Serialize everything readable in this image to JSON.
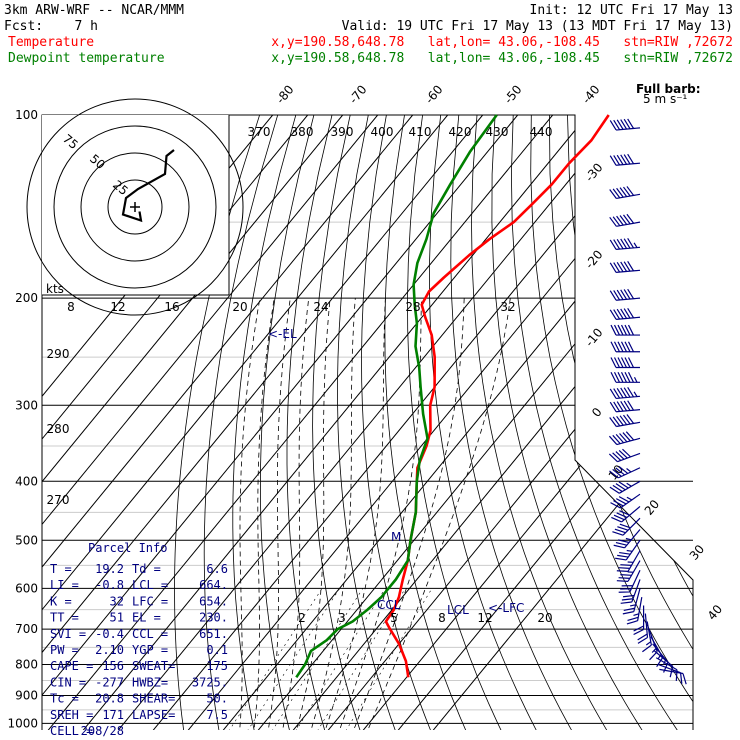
{
  "header": {
    "model": "3km ARW-WRF -- NCAR/MMM",
    "init": "Init: 12 UTC Fri 17 May 13",
    "fcst": "Fcst:    7 h",
    "valid": "Valid: 19 UTC Fri 17 May 13 (13 MDT Fri 17 May 13)",
    "temp_label": "Temperature",
    "dew_label": "Dewpoint temperature",
    "loc_line": "x,y=190.58,648.78   lat,lon= 43.06,-108.45   stn=RIW ,72672"
  },
  "colors": {
    "temperature": "#ff0000",
    "dewpoint": "#008000",
    "parcel": "#000080",
    "grid": "#000000"
  },
  "barb_legend": {
    "title": "Full barb:",
    "unit": "5 m s⁻¹"
  },
  "hodograph": {
    "ring_labels": [
      "75",
      "50",
      "25"
    ],
    "kts_label": "kts",
    "hodo_pts": [
      [
        3,
        -3
      ],
      [
        4,
        -9
      ],
      [
        -8,
        -5
      ],
      [
        -6,
        6
      ],
      [
        2,
        12
      ],
      [
        20,
        22
      ],
      [
        21,
        34
      ],
      [
        26,
        38
      ]
    ]
  },
  "chart_data": {
    "type": "line",
    "title": "",
    "xlabel": "",
    "ylabel": "",
    "y_axis_pressure_labels": [
      "100",
      "200",
      "300",
      "400",
      "500",
      "600",
      "700",
      "800",
      "900",
      "1000"
    ],
    "x_axis_temp_labels": [
      "-80",
      "-70",
      "-60",
      "-50",
      "-40",
      "-30",
      "-20",
      "-10",
      "0",
      "10",
      "20",
      "30",
      "40"
    ],
    "mixing_ratio_labels": [
      "2",
      "3",
      "5",
      "8",
      "12",
      "20"
    ],
    "theta_labels_top": [
      "370",
      "380",
      "390",
      "400",
      "410",
      "420",
      "430",
      "440"
    ],
    "theta_labels_left": [
      "290",
      "280",
      "270"
    ],
    "theta_e_labels": [
      "8",
      "12",
      "16",
      "20",
      "24",
      "28",
      "32"
    ],
    "series": [
      {
        "name": "Temperature",
        "points": [
          [
            840,
            30.5
          ],
          [
            790,
            26
          ],
          [
            740,
            20
          ],
          [
            700,
            14
          ],
          [
            680,
            11
          ],
          [
            650,
            10.5
          ],
          [
            620,
            9
          ],
          [
            580,
            6
          ],
          [
            540,
            3
          ],
          [
            500,
            -1
          ],
          [
            450,
            -6
          ],
          [
            400,
            -13
          ],
          [
            380,
            -16
          ],
          [
            350,
            -18.5
          ],
          [
            330,
            -21
          ],
          [
            300,
            -27
          ],
          [
            280,
            -30
          ],
          [
            250,
            -37
          ],
          [
            230,
            -43
          ],
          [
            215,
            -49
          ],
          [
            205,
            -53
          ],
          [
            195,
            -54
          ],
          [
            185,
            -53
          ],
          [
            170,
            -51
          ],
          [
            160,
            -49
          ],
          [
            150,
            -46
          ],
          [
            140,
            -45
          ],
          [
            130,
            -44
          ],
          [
            120,
            -44
          ],
          [
            110,
            -43
          ],
          [
            100,
            -44
          ]
        ]
      },
      {
        "name": "Dewpoint temperature",
        "points": [
          [
            840,
            -1.5
          ],
          [
            800,
            -2
          ],
          [
            760,
            -3.5
          ],
          [
            730,
            -1.5
          ],
          [
            700,
            -1
          ],
          [
            680,
            1.5
          ],
          [
            650,
            3
          ],
          [
            620,
            4
          ],
          [
            580,
            4
          ],
          [
            540,
            3
          ],
          [
            500,
            -1
          ],
          [
            450,
            -6
          ],
          [
            400,
            -13
          ],
          [
            370,
            -17
          ],
          [
            340,
            -20
          ],
          [
            310,
            -27
          ],
          [
            280,
            -34
          ],
          [
            260,
            -39
          ],
          [
            240,
            -45
          ],
          [
            220,
            -50
          ],
          [
            205,
            -55
          ],
          [
            190,
            -60
          ],
          [
            175,
            -64
          ],
          [
            160,
            -67
          ],
          [
            145,
            -71
          ],
          [
            130,
            -73
          ],
          [
            115,
            -75
          ],
          [
            100,
            -76
          ]
        ]
      }
    ]
  },
  "markers": {
    "ccl": "CCL",
    "lcl": "LCL",
    "lfc": "<-LFC",
    "el": "<-EL",
    "parcel_mark": "M"
  },
  "parcel_info": {
    "title": "Parcel Info",
    "rows": [
      {
        "l1": "T    =",
        "v1": "19.2",
        "l2": "Td  =",
        "v2": "6.6"
      },
      {
        "l1": "LI   =",
        "v1": "-0.8",
        "l2": "LCL =",
        "v2": "664."
      },
      {
        "l1": "K    =",
        "v1": "32",
        "l2": "LFC =",
        "v2": "654."
      },
      {
        "l1": "TT   =",
        "v1": "51",
        "l2": "EL  =",
        "v2": "230."
      },
      {
        "l1": "SVI  =",
        "v1": "-0.4",
        "l2": "CCL =",
        "v2": "651."
      },
      {
        "l1": "PW   =",
        "v1": "2.10",
        "l2": "YGP =",
        "v2": "0.1"
      },
      {
        "l1": "CAPE =",
        "v1": "156",
        "l2": "SWEAT=",
        "v2": "175"
      },
      {
        "l1": "CIN  =",
        "v1": "-277",
        "l2": "HWBZ=",
        "v2": "3725."
      },
      {
        "l1": "Tc   =",
        "v1": "20.8",
        "l2": "SHEAR=",
        "v2": "50."
      },
      {
        "l1": "SREH =",
        "v1": "171",
        "l2": "LAPSE=",
        "v2": "7.5"
      },
      {
        "l1": "CELL =",
        "v1": "208/28",
        "l2": "",
        "v2": ""
      }
    ]
  },
  "wind_barbs": [
    {
      "p": 105,
      "speed": 22,
      "dir": 265
    },
    {
      "p": 120,
      "speed": 22,
      "dir": 265
    },
    {
      "p": 135,
      "speed": 20,
      "dir": 260
    },
    {
      "p": 150,
      "speed": 20,
      "dir": 260
    },
    {
      "p": 165,
      "speed": 23,
      "dir": 265
    },
    {
      "p": 180,
      "speed": 22,
      "dir": 265
    },
    {
      "p": 200,
      "speed": 20,
      "dir": 265
    },
    {
      "p": 215,
      "speed": 20,
      "dir": 265
    },
    {
      "p": 230,
      "speed": 18,
      "dir": 270
    },
    {
      "p": 245,
      "speed": 18,
      "dir": 270
    },
    {
      "p": 260,
      "speed": 18,
      "dir": 270
    },
    {
      "p": 275,
      "speed": 17,
      "dir": 270
    },
    {
      "p": 290,
      "speed": 15,
      "dir": 265
    },
    {
      "p": 305,
      "speed": 14,
      "dir": 265
    },
    {
      "p": 320,
      "speed": 12,
      "dir": 260
    },
    {
      "p": 340,
      "speed": 12,
      "dir": 255
    },
    {
      "p": 360,
      "speed": 10,
      "dir": 250
    },
    {
      "p": 380,
      "speed": 9,
      "dir": 245
    },
    {
      "p": 400,
      "speed": 9,
      "dir": 240
    },
    {
      "p": 420,
      "speed": 9,
      "dir": 235
    },
    {
      "p": 440,
      "speed": 8,
      "dir": 230
    },
    {
      "p": 460,
      "speed": 8,
      "dir": 225
    },
    {
      "p": 480,
      "speed": 7,
      "dir": 220
    },
    {
      "p": 500,
      "speed": 7,
      "dir": 215
    },
    {
      "p": 520,
      "speed": 7,
      "dir": 210
    },
    {
      "p": 540,
      "speed": 7,
      "dir": 210
    },
    {
      "p": 560,
      "speed": 6,
      "dir": 205
    },
    {
      "p": 580,
      "speed": 6,
      "dir": 200
    },
    {
      "p": 600,
      "speed": 5,
      "dir": 195
    },
    {
      "p": 620,
      "speed": 5,
      "dir": 190
    },
    {
      "p": 640,
      "speed": 4,
      "dir": 180
    },
    {
      "p": 660,
      "speed": 4,
      "dir": 175
    },
    {
      "p": 680,
      "speed": 3,
      "dir": 170
    },
    {
      "p": 700,
      "speed": 3,
      "dir": 160
    },
    {
      "p": 720,
      "speed": 3,
      "dir": 150
    },
    {
      "p": 740,
      "speed": 3,
      "dir": 140
    },
    {
      "p": 760,
      "speed": 2,
      "dir": 130
    },
    {
      "p": 780,
      "speed": 2,
      "dir": 120
    },
    {
      "p": 800,
      "speed": 2,
      "dir": 110
    },
    {
      "p": 815,
      "speed": 2,
      "dir": 100
    }
  ]
}
